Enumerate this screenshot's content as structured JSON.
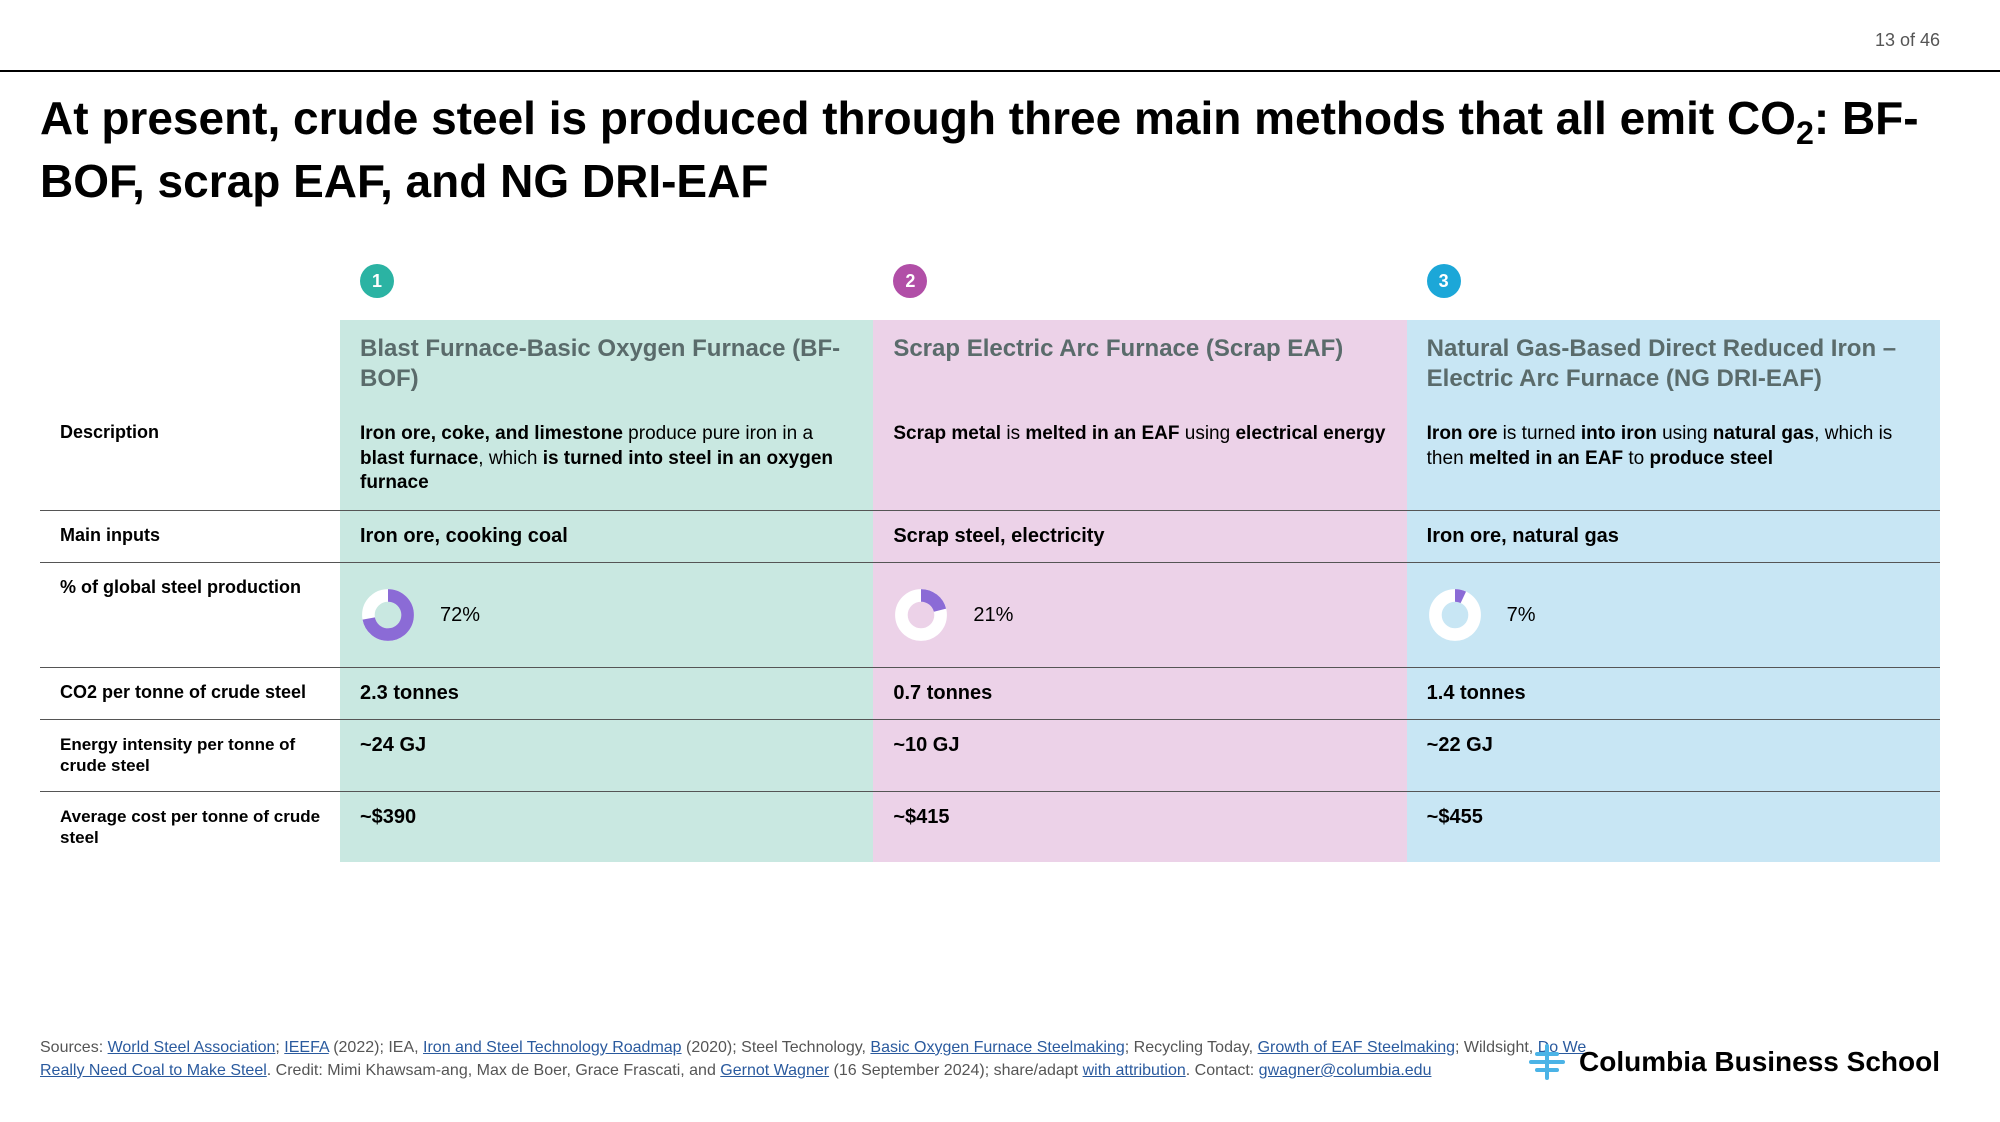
{
  "page_number": "13 of 46",
  "title_html": "At present, crude steel is produced through three main methods that all emit CO<sub>2</sub>: BF-BOF, scrap EAF, and NG DRI-EAF",
  "colors": {
    "badge": [
      "#2bb3a3",
      "#b14fa7",
      "#1ca7d8"
    ],
    "col_bg": [
      "#c9e8e1",
      "#ecd2e8",
      "#c8e6f4"
    ],
    "donut_fill": "#8b6bd6",
    "donut_track": "#ffffff",
    "rule": "#000000",
    "logo_accent": "#4bb3e6"
  },
  "row_labels": {
    "description": "Description",
    "main_inputs": "Main inputs",
    "pct_global": "% of global steel production",
    "co2": "CO2 per tonne of crude steel",
    "energy": "Energy intensity per tonne of crude steel",
    "cost": "Average cost per tonne of crude steel"
  },
  "methods": [
    {
      "num": "1",
      "name": "Blast Furnace-Basic Oxygen Furnace (BF-BOF)",
      "description_html": "<b>Iron ore, coke, and limestone</b> produce pure iron in a <b>blast furnace</b>, which <b>is turned into steel in an oxygen furnace</b>",
      "main_inputs": "Iron ore, cooking coal",
      "pct_global": 72,
      "pct_label": "72%",
      "co2": "2.3 tonnes",
      "energy": "~24 GJ",
      "cost": "~$390"
    },
    {
      "num": "2",
      "name": "Scrap Electric Arc Furnace (Scrap EAF)",
      "description_html": "<b>Scrap metal</b> is <b>melted in an EAF</b> using <b>electrical energy</b>",
      "main_inputs": "Scrap steel, electricity",
      "pct_global": 21,
      "pct_label": "21%",
      "co2": "0.7 tonnes",
      "energy": "~10 GJ",
      "cost": "~$415"
    },
    {
      "num": "3",
      "name": "Natural Gas-Based Direct Reduced Iron – Electric Arc Furnace (NG DRI-EAF)",
      "description_html": "<b>Iron ore</b> is turned <b>into iron</b> using <b>natural gas</b>, which is then <b>melted in an EAF</b> to <b>produce steel</b>",
      "main_inputs": "Iron ore, natural gas",
      "pct_global": 7,
      "pct_label": "7%",
      "co2": "1.4 tonnes",
      "energy": "~22 GJ",
      "cost": "~$455"
    }
  ],
  "footer_html": "Sources: <a>World Steel Association</a>; <a>IEEFA</a> (2022); IEA, <a>Iron and Steel Technology Roadmap</a> (2020); Steel Technology, <a>Basic Oxygen Furnace Steelmaking</a>; Recycling Today, <a>Growth of EAF Steelmaking</a>; Wildsight, <a>Do We Really Need Coal to Make Steel</a>. Credit: Mimi Khawsam-ang, Max de Boer, Grace Frascati, and <a>Gernot Wagner</a> (16 September 2024); share/adapt <a>with attribution</a>. Contact: <a>gwagner@columbia.edu</a>",
  "logo_text": "Columbia Business School",
  "typography": {
    "title_fontsize": 46,
    "method_name_fontsize": 24,
    "body_fontsize": 20,
    "row_label_fontsize": 18,
    "footer_fontsize": 16
  }
}
